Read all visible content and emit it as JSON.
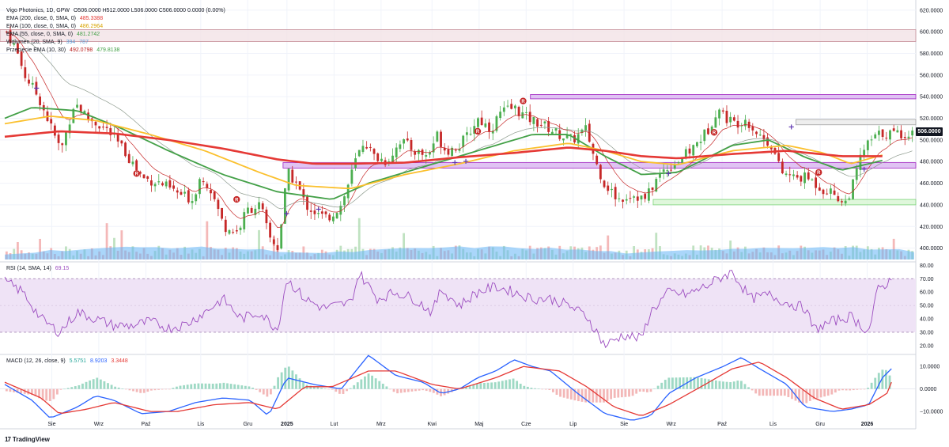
{
  "header": {
    "symbol_line": "Vigo Photonics, 1D, GPW",
    "ohlc": "O506.0000  H512.0000  L506.0000  C506.0000  0.0000 (0.00%)"
  },
  "indicators": [
    {
      "label": "EMA (200, close, 0, SMA, 0)",
      "value": "485.3388",
      "color": "#e53935"
    },
    {
      "label": "EMA (100, close, 0, SMA, 0)",
      "value": "486.2964",
      "color": "#fbc02d"
    },
    {
      "label": "EMA (55, close, 0, SMA, 0)",
      "value": "481.2742",
      "color": "#43a047"
    },
    {
      "label": "Wolumen (20, SMA, 9)",
      "value": "394",
      "value2": "787",
      "color": "#5b9bd5"
    },
    {
      "label": "Przecięcie EMA (10, 30)",
      "value": "492.0798",
      "value2": "479.8138",
      "color": "#b71c1c",
      "color2": "#43a047"
    }
  ],
  "rsi": {
    "label": "RSI (14, SMA, 14)",
    "value": "69.15"
  },
  "macd": {
    "label": "MACD (12, 26, close, 9)",
    "v1": "5.5751",
    "v2": "8.9203",
    "v3": "3.3448"
  },
  "last_price_tag": "506.0000",
  "brand": "TradingView",
  "colors": {
    "up": "#26a69a",
    "down": "#ef5350",
    "candle_up": "#4caf50",
    "candle_down": "#c62828",
    "ema200": "#e53935",
    "ema100": "#fbc02d",
    "ema55": "#43a047",
    "rsi_line": "#9c4dc0",
    "rsi_band": "#efe3f6",
    "macd": "#2962ff",
    "signal": "#e53935",
    "zone_pink": "#f3e2e6",
    "zone_purple": "#d8b4f0",
    "zone_green": "#d7f5d2",
    "zone_grey": "#eaeaea"
  },
  "chart_data": {
    "type": "candlestick",
    "price_axis": {
      "ticks": [
        "620.0000",
        "600.0000",
        "580.0000",
        "560.0000",
        "540.0000",
        "520.0000",
        "500.0000",
        "480.0000",
        "460.0000",
        "440.0000",
        "420.0000",
        "400.0000"
      ],
      "range": [
        388,
        625
      ]
    },
    "rsi_axis": {
      "ticks": [
        "80.00",
        "70.00",
        "60.00",
        "50.00",
        "40.00",
        "30.00",
        "20.00"
      ],
      "range": [
        14,
        82
      ]
    },
    "macd_axis": {
      "ticks": [
        "10.0000",
        "0.0000",
        "−10.0000"
      ],
      "range": [
        -17,
        15
      ]
    },
    "x_labels": [
      "Sie",
      "Wrz",
      "Paź",
      "Lis",
      "Gru",
      "2025",
      "Lut",
      "Mrz",
      "Kwi",
      "Maj",
      "Cze",
      "Lip",
      "Sie",
      "Wrz",
      "Paź",
      "Lis",
      "Gru",
      "2026"
    ],
    "x_label_positions": [
      0.0517,
      0.1034,
      0.1552,
      0.2155,
      0.2672,
      0.3103,
      0.3621,
      0.4138,
      0.4698,
      0.5216,
      0.5733,
      0.625,
      0.681,
      0.7328,
      0.7888,
      0.8448,
      0.8966,
      0.9483
    ],
    "zones": [
      {
        "kind": "pink",
        "y1": 591,
        "y2": 602
      },
      {
        "kind": "purple",
        "y1": 538,
        "y2": 542,
        "x_start": 0.578
      },
      {
        "kind": "purple",
        "y1": 474,
        "y2": 479,
        "x_start": 0.306
      },
      {
        "kind": "grey",
        "y1": 514,
        "y2": 519,
        "x_start": 0.87
      },
      {
        "kind": "green",
        "y1": 440,
        "y2": 445,
        "x_start": 0.713
      }
    ],
    "close_waypoints": [
      [
        0.0,
        600
      ],
      [
        0.01,
        585
      ],
      [
        0.02,
        560
      ],
      [
        0.035,
        540
      ],
      [
        0.05,
        510
      ],
      [
        0.06,
        490
      ],
      [
        0.075,
        535
      ],
      [
        0.09,
        520
      ],
      [
        0.11,
        510
      ],
      [
        0.13,
        490
      ],
      [
        0.15,
        465
      ],
      [
        0.17,
        460
      ],
      [
        0.19,
        450
      ],
      [
        0.205,
        445
      ],
      [
        0.215,
        468
      ],
      [
        0.225,
        455
      ],
      [
        0.24,
        420
      ],
      [
        0.255,
        415
      ],
      [
        0.265,
        435
      ],
      [
        0.28,
        440
      ],
      [
        0.29,
        410
      ],
      [
        0.3,
        400
      ],
      [
        0.31,
        470
      ],
      [
        0.32,
        460
      ],
      [
        0.33,
        440
      ],
      [
        0.345,
        430
      ],
      [
        0.355,
        428
      ],
      [
        0.37,
        440
      ],
      [
        0.385,
        480
      ],
      [
        0.395,
        500
      ],
      [
        0.405,
        485
      ],
      [
        0.42,
        480
      ],
      [
        0.435,
        500
      ],
      [
        0.45,
        490
      ],
      [
        0.465,
        485
      ],
      [
        0.475,
        505
      ],
      [
        0.485,
        490
      ],
      [
        0.5,
        495
      ],
      [
        0.51,
        505
      ],
      [
        0.52,
        520
      ],
      [
        0.535,
        510
      ],
      [
        0.545,
        525
      ],
      [
        0.56,
        530
      ],
      [
        0.575,
        520
      ],
      [
        0.59,
        515
      ],
      [
        0.61,
        505
      ],
      [
        0.625,
        500
      ],
      [
        0.64,
        510
      ],
      [
        0.65,
        480
      ],
      [
        0.66,
        460
      ],
      [
        0.675,
        445
      ],
      [
        0.69,
        450
      ],
      [
        0.705,
        445
      ],
      [
        0.715,
        460
      ],
      [
        0.725,
        472
      ],
      [
        0.74,
        480
      ],
      [
        0.755,
        490
      ],
      [
        0.765,
        500
      ],
      [
        0.775,
        510
      ],
      [
        0.785,
        530
      ],
      [
        0.795,
        520
      ],
      [
        0.805,
        515
      ],
      [
        0.815,
        520
      ],
      [
        0.83,
        505
      ],
      [
        0.845,
        495
      ],
      [
        0.855,
        470
      ],
      [
        0.87,
        465
      ],
      [
        0.885,
        465
      ],
      [
        0.9,
        455
      ],
      [
        0.915,
        450
      ],
      [
        0.925,
        440
      ],
      [
        0.935,
        460
      ],
      [
        0.945,
        490
      ],
      [
        0.955,
        500
      ],
      [
        0.965,
        506
      ]
    ],
    "ema200_waypoints": [
      [
        0,
        503
      ],
      [
        0.06,
        508
      ],
      [
        0.12,
        506
      ],
      [
        0.18,
        500
      ],
      [
        0.24,
        492
      ],
      [
        0.3,
        482
      ],
      [
        0.34,
        478
      ],
      [
        0.38,
        478
      ],
      [
        0.44,
        479
      ],
      [
        0.5,
        484
      ],
      [
        0.56,
        488
      ],
      [
        0.62,
        493
      ],
      [
        0.66,
        490
      ],
      [
        0.7,
        485
      ],
      [
        0.74,
        483
      ],
      [
        0.8,
        487
      ],
      [
        0.86,
        490
      ],
      [
        0.92,
        485
      ],
      [
        0.965,
        485
      ]
    ],
    "ema100_waypoints": [
      [
        0,
        515
      ],
      [
        0.05,
        522
      ],
      [
        0.1,
        518
      ],
      [
        0.16,
        505
      ],
      [
        0.22,
        490
      ],
      [
        0.28,
        470
      ],
      [
        0.32,
        458
      ],
      [
        0.38,
        455
      ],
      [
        0.44,
        468
      ],
      [
        0.5,
        478
      ],
      [
        0.56,
        490
      ],
      [
        0.62,
        497
      ],
      [
        0.66,
        490
      ],
      [
        0.7,
        480
      ],
      [
        0.74,
        477
      ],
      [
        0.8,
        490
      ],
      [
        0.86,
        495
      ],
      [
        0.9,
        488
      ],
      [
        0.93,
        478
      ],
      [
        0.965,
        486
      ]
    ],
    "ema55_waypoints": [
      [
        0,
        520
      ],
      [
        0.03,
        530
      ],
      [
        0.08,
        527
      ],
      [
        0.13,
        510
      ],
      [
        0.18,
        490
      ],
      [
        0.24,
        468
      ],
      [
        0.3,
        452
      ],
      [
        0.36,
        445
      ],
      [
        0.4,
        460
      ],
      [
        0.46,
        475
      ],
      [
        0.52,
        490
      ],
      [
        0.58,
        505
      ],
      [
        0.62,
        505
      ],
      [
        0.66,
        485
      ],
      [
        0.7,
        468
      ],
      [
        0.74,
        470
      ],
      [
        0.8,
        495
      ],
      [
        0.84,
        500
      ],
      [
        0.88,
        484
      ],
      [
        0.92,
        472
      ],
      [
        0.965,
        481
      ]
    ],
    "rsi_waypoints": [
      [
        0,
        68
      ],
      [
        0.02,
        60
      ],
      [
        0.04,
        40
      ],
      [
        0.06,
        30
      ],
      [
        0.08,
        45
      ],
      [
        0.1,
        40
      ],
      [
        0.12,
        35
      ],
      [
        0.14,
        35
      ],
      [
        0.16,
        38
      ],
      [
        0.18,
        33
      ],
      [
        0.2,
        36
      ],
      [
        0.22,
        45
      ],
      [
        0.24,
        55
      ],
      [
        0.26,
        40
      ],
      [
        0.28,
        45
      ],
      [
        0.3,
        32
      ],
      [
        0.31,
        70
      ],
      [
        0.33,
        55
      ],
      [
        0.35,
        48
      ],
      [
        0.38,
        52
      ],
      [
        0.39,
        74
      ],
      [
        0.41,
        55
      ],
      [
        0.43,
        60
      ],
      [
        0.45,
        55
      ],
      [
        0.47,
        45
      ],
      [
        0.48,
        62
      ],
      [
        0.5,
        50
      ],
      [
        0.52,
        60
      ],
      [
        0.54,
        64
      ],
      [
        0.56,
        60
      ],
      [
        0.58,
        55
      ],
      [
        0.6,
        55
      ],
      [
        0.62,
        50
      ],
      [
        0.64,
        42
      ],
      [
        0.66,
        20
      ],
      [
        0.68,
        28
      ],
      [
        0.7,
        25
      ],
      [
        0.71,
        45
      ],
      [
        0.73,
        60
      ],
      [
        0.75,
        58
      ],
      [
        0.77,
        64
      ],
      [
        0.79,
        72
      ],
      [
        0.8,
        75
      ],
      [
        0.82,
        55
      ],
      [
        0.84,
        58
      ],
      [
        0.86,
        52
      ],
      [
        0.88,
        48
      ],
      [
        0.89,
        32
      ],
      [
        0.91,
        38
      ],
      [
        0.93,
        42
      ],
      [
        0.95,
        30
      ],
      [
        0.96,
        62
      ],
      [
        0.975,
        69
      ]
    ],
    "macd_waypoints": [
      [
        0,
        2
      ],
      [
        0.03,
        -5
      ],
      [
        0.05,
        -13
      ],
      [
        0.08,
        -8
      ],
      [
        0.1,
        -3
      ],
      [
        0.12,
        -5
      ],
      [
        0.15,
        -11
      ],
      [
        0.18,
        -10
      ],
      [
        0.21,
        -6
      ],
      [
        0.24,
        -4
      ],
      [
        0.27,
        -5
      ],
      [
        0.29,
        -12
      ],
      [
        0.31,
        5
      ],
      [
        0.34,
        2
      ],
      [
        0.37,
        0
      ],
      [
        0.4,
        15
      ],
      [
        0.43,
        6
      ],
      [
        0.46,
        3
      ],
      [
        0.48,
        -2
      ],
      [
        0.5,
        0
      ],
      [
        0.52,
        5
      ],
      [
        0.54,
        8
      ],
      [
        0.56,
        13
      ],
      [
        0.58,
        10
      ],
      [
        0.6,
        8
      ],
      [
        0.63,
        -2
      ],
      [
        0.66,
        -11
      ],
      [
        0.69,
        -14
      ],
      [
        0.71,
        -12
      ],
      [
        0.73,
        -2
      ],
      [
        0.76,
        5
      ],
      [
        0.79,
        10
      ],
      [
        0.81,
        14
      ],
      [
        0.83,
        9
      ],
      [
        0.86,
        2
      ],
      [
        0.88,
        -8
      ],
      [
        0.91,
        -10
      ],
      [
        0.93,
        -9
      ],
      [
        0.95,
        -7
      ],
      [
        0.965,
        5
      ],
      [
        0.975,
        9
      ]
    ],
    "signal_waypoints": [
      [
        0,
        3
      ],
      [
        0.04,
        -4
      ],
      [
        0.06,
        -11
      ],
      [
        0.09,
        -9
      ],
      [
        0.12,
        -6
      ],
      [
        0.16,
        -10
      ],
      [
        0.19,
        -10
      ],
      [
        0.23,
        -7
      ],
      [
        0.27,
        -6
      ],
      [
        0.3,
        -9
      ],
      [
        0.33,
        1
      ],
      [
        0.36,
        1
      ],
      [
        0.4,
        8
      ],
      [
        0.43,
        8
      ],
      [
        0.47,
        2
      ],
      [
        0.5,
        0
      ],
      [
        0.54,
        5
      ],
      [
        0.57,
        10
      ],
      [
        0.61,
        8
      ],
      [
        0.64,
        1
      ],
      [
        0.67,
        -8
      ],
      [
        0.7,
        -12
      ],
      [
        0.73,
        -7
      ],
      [
        0.77,
        2
      ],
      [
        0.8,
        9
      ],
      [
        0.83,
        12
      ],
      [
        0.86,
        5
      ],
      [
        0.89,
        -4
      ],
      [
        0.92,
        -9
      ],
      [
        0.95,
        -7
      ],
      [
        0.97,
        -2
      ],
      [
        0.975,
        3
      ]
    ],
    "signal_markers_R": [
      [
        0.145,
        469
      ],
      [
        0.255,
        445
      ],
      [
        0.52,
        508
      ],
      [
        0.57,
        536
      ],
      [
        0.78,
        507
      ],
      [
        0.895,
        470
      ]
    ],
    "signal_markers_plus": [
      [
        0.035,
        548
      ],
      [
        0.31,
        432
      ],
      [
        0.345,
        436
      ],
      [
        0.495,
        479
      ],
      [
        0.507,
        480
      ],
      [
        0.73,
        469
      ],
      [
        0.865,
        512
      ],
      [
        0.945,
        473
      ]
    ]
  }
}
